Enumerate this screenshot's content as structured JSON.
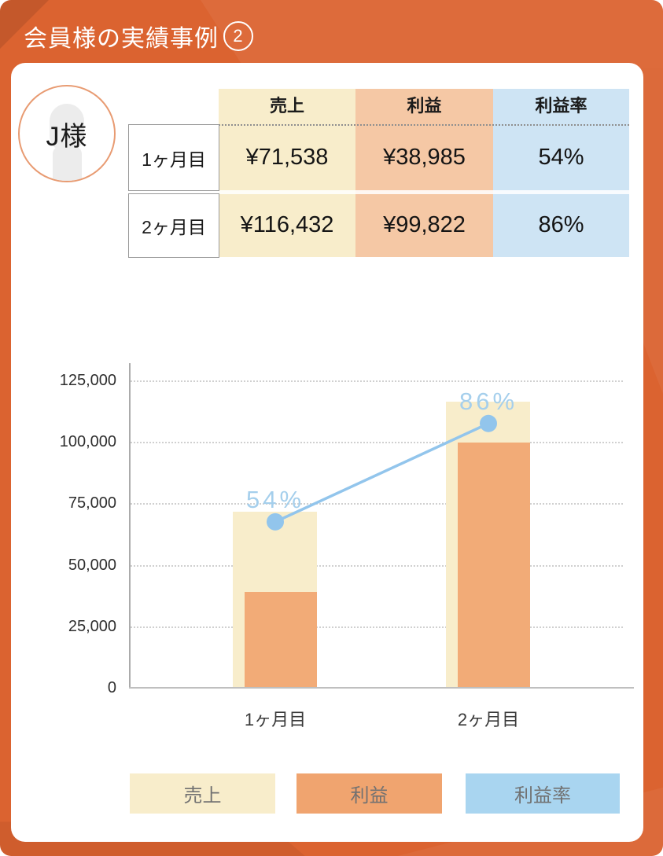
{
  "page": {
    "title": "会員様の実績事例",
    "title_number": "2"
  },
  "member": {
    "label": "J様"
  },
  "table": {
    "columns": [
      "売上",
      "利益",
      "利益率"
    ],
    "rows": [
      {
        "label": "1ヶ月目",
        "sales": "¥71,538",
        "profit": "¥38,985",
        "rate": "54%"
      },
      {
        "label": "2ヶ月目",
        "sales": "¥116,432",
        "profit": "¥99,822",
        "rate": "86%"
      }
    ]
  },
  "chart_data": {
    "type": "bar",
    "categories": [
      "1ヶ月目",
      "2ヶ月目"
    ],
    "series": [
      {
        "name": "売上",
        "type": "bar",
        "values": [
          71538,
          116432
        ],
        "color": "#F8EDCB"
      },
      {
        "name": "利益",
        "type": "bar",
        "values": [
          38985,
          99822
        ],
        "color": "#F2AB77"
      },
      {
        "name": "利益率",
        "type": "line",
        "values_percent": [
          54,
          86
        ],
        "labels": [
          "54%",
          "86%"
        ],
        "color": "#92C5EC"
      }
    ],
    "yticks": [
      "125,000",
      "100,000",
      "75,000",
      "50,000",
      "25,000",
      "0"
    ],
    "ylim": [
      0,
      125000
    ],
    "secondary_ylim_percent": [
      0,
      100
    ],
    "grid": "dashed-horizontal",
    "legend_position": "bottom",
    "legend_items": [
      {
        "label": "売上",
        "color": "#F8EDCB"
      },
      {
        "label": "利益",
        "color": "#F0A46F"
      },
      {
        "label": "利益率",
        "color": "#A9D5F0"
      }
    ]
  },
  "colors": {
    "background_orange": "#DB6330",
    "card": "#FFFFFF",
    "table_sales_bg": "#F8EDCB",
    "table_profit_bg": "#F5C8A5",
    "table_rate_bg": "#CEE4F4",
    "rate_line_blue": "#92C5EC",
    "rate_label_blue": "#A5CFEC",
    "avatar_ring": "#E89B72"
  }
}
